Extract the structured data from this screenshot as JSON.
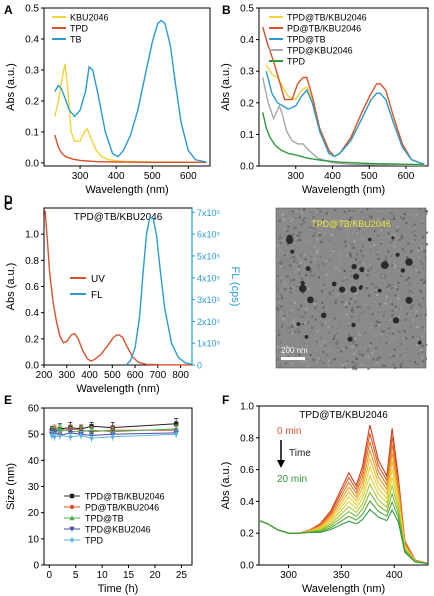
{
  "figure": {
    "panels": [
      "A",
      "B",
      "C",
      "D",
      "E",
      "F"
    ]
  },
  "chart_data": [
    {
      "panel": "A",
      "type": "line",
      "xlabel": "Wavelength (nm)",
      "ylabel": "Abs (a.u.)",
      "xlim": [
        200,
        660
      ],
      "ylim": [
        -0.01,
        0.5
      ],
      "xticks": [
        300,
        400,
        500,
        600
      ],
      "yticks": [
        0.0,
        0.1,
        0.2,
        0.3,
        0.4,
        0.5
      ],
      "legend_position": "top-left",
      "series": [
        {
          "name": "KBU2046",
          "color": "#f2d23a",
          "x": [
            230,
            240,
            250,
            258,
            265,
            275,
            285,
            300,
            312,
            320,
            330,
            345,
            360,
            380,
            420,
            500,
            650
          ],
          "y": [
            0.15,
            0.2,
            0.27,
            0.32,
            0.25,
            0.1,
            0.07,
            0.07,
            0.1,
            0.11,
            0.08,
            0.04,
            0.02,
            0.01,
            0.005,
            0.003,
            0.002
          ]
        },
        {
          "name": "TPD",
          "color": "#d9522b",
          "x": [
            230,
            240,
            250,
            260,
            280,
            300,
            320,
            350,
            400,
            500,
            650
          ],
          "y": [
            0.09,
            0.05,
            0.03,
            0.02,
            0.012,
            0.008,
            0.006,
            0.004,
            0.003,
            0.002,
            0.002
          ]
        },
        {
          "name": "TB",
          "color": "#2a9bd0",
          "x": [
            230,
            240,
            248,
            258,
            270,
            285,
            300,
            315,
            325,
            335,
            350,
            370,
            390,
            405,
            420,
            440,
            460,
            480,
            500,
            515,
            525,
            535,
            550,
            565,
            580,
            600,
            620,
            650
          ],
          "y": [
            0.23,
            0.25,
            0.24,
            0.21,
            0.17,
            0.15,
            0.17,
            0.23,
            0.31,
            0.3,
            0.22,
            0.1,
            0.03,
            0.02,
            0.04,
            0.09,
            0.17,
            0.28,
            0.39,
            0.45,
            0.46,
            0.45,
            0.38,
            0.25,
            0.13,
            0.04,
            0.01,
            0.003
          ]
        }
      ]
    },
    {
      "panel": "B",
      "type": "line",
      "xlabel": "Wavelength (nm)",
      "ylabel": "Abs (a.u.)",
      "xlim": [
        200,
        660
      ],
      "ylim": [
        0.0,
        0.5
      ],
      "xticks": [
        300,
        400,
        500,
        600
      ],
      "yticks": [
        0.0,
        0.1,
        0.2,
        0.3,
        0.4,
        0.5
      ],
      "legend_position": "top-right",
      "series": [
        {
          "name": "TPD@TB/KBU2046",
          "color": "#f2d23a",
          "x": [
            220,
            235,
            250,
            265,
            280,
            300,
            315,
            330,
            345,
            365,
            390,
            405,
            420,
            450,
            480,
            505,
            520,
            530,
            545,
            565,
            590,
            615,
            650
          ],
          "y": [
            0.32,
            0.29,
            0.28,
            0.25,
            0.22,
            0.21,
            0.24,
            0.25,
            0.21,
            0.12,
            0.05,
            0.03,
            0.04,
            0.08,
            0.15,
            0.21,
            0.23,
            0.23,
            0.21,
            0.14,
            0.06,
            0.02,
            0.005
          ]
        },
        {
          "name": "PD@TB/KBU2046",
          "color": "#d9522b",
          "x": [
            210,
            225,
            240,
            255,
            270,
            290,
            305,
            320,
            330,
            345,
            365,
            390,
            405,
            420,
            450,
            480,
            505,
            520,
            530,
            545,
            565,
            590,
            615,
            650
          ],
          "y": [
            0.44,
            0.38,
            0.33,
            0.27,
            0.21,
            0.21,
            0.26,
            0.28,
            0.28,
            0.22,
            0.12,
            0.05,
            0.03,
            0.04,
            0.09,
            0.17,
            0.23,
            0.26,
            0.26,
            0.24,
            0.16,
            0.07,
            0.02,
            0.005
          ]
        },
        {
          "name": "TPD@TB",
          "color": "#2a9bd0",
          "x": [
            220,
            235,
            250,
            265,
            280,
            300,
            315,
            330,
            345,
            365,
            390,
            405,
            420,
            450,
            480,
            505,
            520,
            530,
            545,
            565,
            590,
            615,
            650
          ],
          "y": [
            0.3,
            0.23,
            0.2,
            0.19,
            0.18,
            0.19,
            0.22,
            0.24,
            0.2,
            0.11,
            0.04,
            0.03,
            0.04,
            0.08,
            0.15,
            0.21,
            0.23,
            0.23,
            0.21,
            0.14,
            0.06,
            0.02,
            0.005
          ]
        },
        {
          "name": "TPD@KBU2046",
          "color": "#a8a8a8",
          "x": [
            210,
            225,
            240,
            255,
            262,
            275,
            290,
            305,
            320,
            335,
            360,
            400,
            450,
            550,
            650
          ],
          "y": [
            0.28,
            0.2,
            0.15,
            0.19,
            0.17,
            0.11,
            0.08,
            0.07,
            0.07,
            0.05,
            0.025,
            0.01,
            0.005,
            0.003,
            0.002
          ]
        },
        {
          "name": "TPD",
          "color": "#2e9a3c",
          "x": [
            210,
            220,
            230,
            245,
            260,
            280,
            300,
            330,
            370,
            420,
            500,
            650
          ],
          "y": [
            0.17,
            0.12,
            0.09,
            0.065,
            0.05,
            0.04,
            0.035,
            0.025,
            0.018,
            0.012,
            0.008,
            0.004
          ]
        }
      ]
    },
    {
      "panel": "C",
      "type": "line",
      "title": "TPD@TB/KBU2046",
      "xlabel": "Wavelength (nm)",
      "ylabel": "Abs (a.u.)",
      "y2label": "FL (cps)",
      "xlim": [
        200,
        850
      ],
      "ylim": [
        0.0,
        1.2
      ],
      "y2lim": [
        0,
        720000
      ],
      "xticks": [
        200,
        300,
        400,
        500,
        600,
        700,
        800
      ],
      "yticks": [
        0.0,
        0.2,
        0.4,
        0.6,
        0.8,
        1.0
      ],
      "y2ticks": [
        0,
        100000,
        200000,
        300000,
        400000,
        500000,
        600000,
        700000
      ],
      "y2ticklabels": [
        "0",
        "1x10⁵",
        "2x10⁵",
        "3x10⁵",
        "4x10⁵",
        "5x10⁵",
        "6x10⁵",
        "7x10⁵"
      ],
      "legend_position": "middle-left",
      "series": [
        {
          "name": "UV",
          "axis": "left",
          "color": "#d9522b",
          "x": [
            205,
            215,
            225,
            240,
            255,
            270,
            285,
            300,
            320,
            335,
            350,
            370,
            390,
            405,
            420,
            450,
            480,
            505,
            520,
            530,
            545,
            565,
            590,
            615,
            650,
            700,
            800,
            850
          ],
          "y": [
            1.18,
            0.95,
            0.7,
            0.48,
            0.33,
            0.22,
            0.17,
            0.18,
            0.23,
            0.24,
            0.2,
            0.11,
            0.05,
            0.03,
            0.04,
            0.08,
            0.15,
            0.21,
            0.23,
            0.23,
            0.21,
            0.14,
            0.06,
            0.02,
            0.005,
            0.002,
            0.001,
            0.001
          ]
        },
        {
          "name": "FL",
          "axis": "right",
          "color": "#2a9bd0",
          "x": [
            560,
            580,
            600,
            620,
            635,
            650,
            665,
            680,
            695,
            710,
            730,
            760,
            790,
            820,
            850
          ],
          "y": [
            0,
            20000,
            80000,
            220000,
            420000,
            600000,
            680000,
            670000,
            590000,
            440000,
            260000,
            100000,
            35000,
            10000,
            3000
          ]
        }
      ]
    },
    {
      "panel": "D",
      "type": "image",
      "title": "TPD@TB/KBU2046",
      "scale_bar": "200 nm"
    },
    {
      "panel": "E",
      "type": "line",
      "xlabel": "Time (h)",
      "ylabel": "Size (nm)",
      "xlim": [
        -1,
        27
      ],
      "ylim": [
        0,
        60
      ],
      "xticks": [
        0,
        5,
        10,
        15,
        20,
        25
      ],
      "yticks": [
        0,
        10,
        20,
        30,
        40,
        50,
        60
      ],
      "legend_position": "bottom",
      "x": [
        0.5,
        1,
        2,
        4,
        6,
        8,
        12,
        24
      ],
      "series": [
        {
          "name": "TPD@TB/KBU2046",
          "color": "#222222",
          "marker": "square",
          "y": [
            51.5,
            51.0,
            52.0,
            52.5,
            52.0,
            53.0,
            52.5,
            54.0
          ],
          "err": [
            1.5,
            1.5,
            2.0,
            2.0,
            1.5,
            1.5,
            2.0,
            2.0
          ]
        },
        {
          "name": "PD@TB/KBU2046",
          "color": "#d9522b",
          "marker": "circle",
          "y": [
            51.0,
            52.0,
            51.0,
            52.0,
            51.5,
            51.0,
            51.5,
            51.5
          ],
          "err": [
            1.5,
            1.5,
            1.5,
            1.5,
            1.5,
            1.5,
            1.5,
            1.5
          ]
        },
        {
          "name": "TPD@TB",
          "color": "#4caf50",
          "marker": "triangle",
          "y": [
            51.0,
            51.5,
            52.0,
            51.0,
            51.0,
            51.5,
            51.0,
            52.0
          ],
          "err": [
            1.5,
            1.5,
            1.5,
            1.5,
            1.5,
            1.5,
            1.5,
            1.5
          ]
        },
        {
          "name": "TPD@KBU2046",
          "color": "#4a4aa8",
          "marker": "triangle-down",
          "y": [
            50.0,
            50.5,
            49.5,
            50.5,
            50.0,
            49.5,
            50.0,
            50.5
          ],
          "err": [
            1.5,
            1.5,
            1.5,
            1.5,
            1.5,
            1.5,
            1.5,
            1.5
          ]
        },
        {
          "name": "TPD",
          "color": "#5ab4e0",
          "marker": "diamond",
          "y": [
            49.5,
            49.0,
            49.5,
            49.0,
            49.5,
            48.5,
            49.0,
            50.0
          ],
          "err": [
            1.5,
            1.5,
            1.5,
            1.5,
            1.5,
            1.5,
            1.5,
            1.5
          ]
        }
      ]
    },
    {
      "panel": "F",
      "type": "line",
      "title": "TPD@TB/KBU2046",
      "xlabel": "Wavelength (nm)",
      "ylabel": "Abs (a.u.)",
      "xlim": [
        272,
        432
      ],
      "ylim": [
        0.0,
        1.0
      ],
      "xticks": [
        300,
        350,
        400
      ],
      "yticks": [
        0.0,
        0.2,
        0.4,
        0.6,
        0.8,
        1.0
      ],
      "annotations": [
        "0 min",
        "Time",
        "20 min"
      ],
      "annotation_colors": [
        "#d9522b",
        "#222222",
        "#2e9a3c"
      ],
      "x": [
        272,
        280,
        290,
        300,
        310,
        320,
        330,
        340,
        350,
        357,
        364,
        370,
        377,
        385,
        393,
        398,
        404,
        410,
        420,
        432
      ],
      "shape": [
        0.28,
        0.26,
        0.22,
        0.2,
        0.2,
        0.22,
        0.26,
        0.34,
        0.48,
        0.58,
        0.5,
        0.62,
        0.88,
        0.66,
        0.56,
        0.86,
        0.55,
        0.15,
        0.03,
        0.01
      ],
      "baseline": [
        0.28,
        0.26,
        0.22,
        0.2,
        0.2,
        0.2,
        0.19,
        0.19,
        0.19,
        0.19,
        0.19,
        0.19,
        0.2,
        0.2,
        0.2,
        0.2,
        0.19,
        0.06,
        0.015,
        0.01
      ],
      "time_fractions": [
        0.0,
        0.1,
        0.2,
        0.3,
        0.4,
        0.5,
        0.6,
        0.7,
        0.8,
        0.9,
        1.0
      ],
      "colors": [
        "#d23a20",
        "#dd5a22",
        "#e57a25",
        "#ec9a28",
        "#f1b82c",
        "#efcf31",
        "#d4d334",
        "#a9c836",
        "#7db838",
        "#55a83a",
        "#2e9a3c"
      ]
    }
  ]
}
